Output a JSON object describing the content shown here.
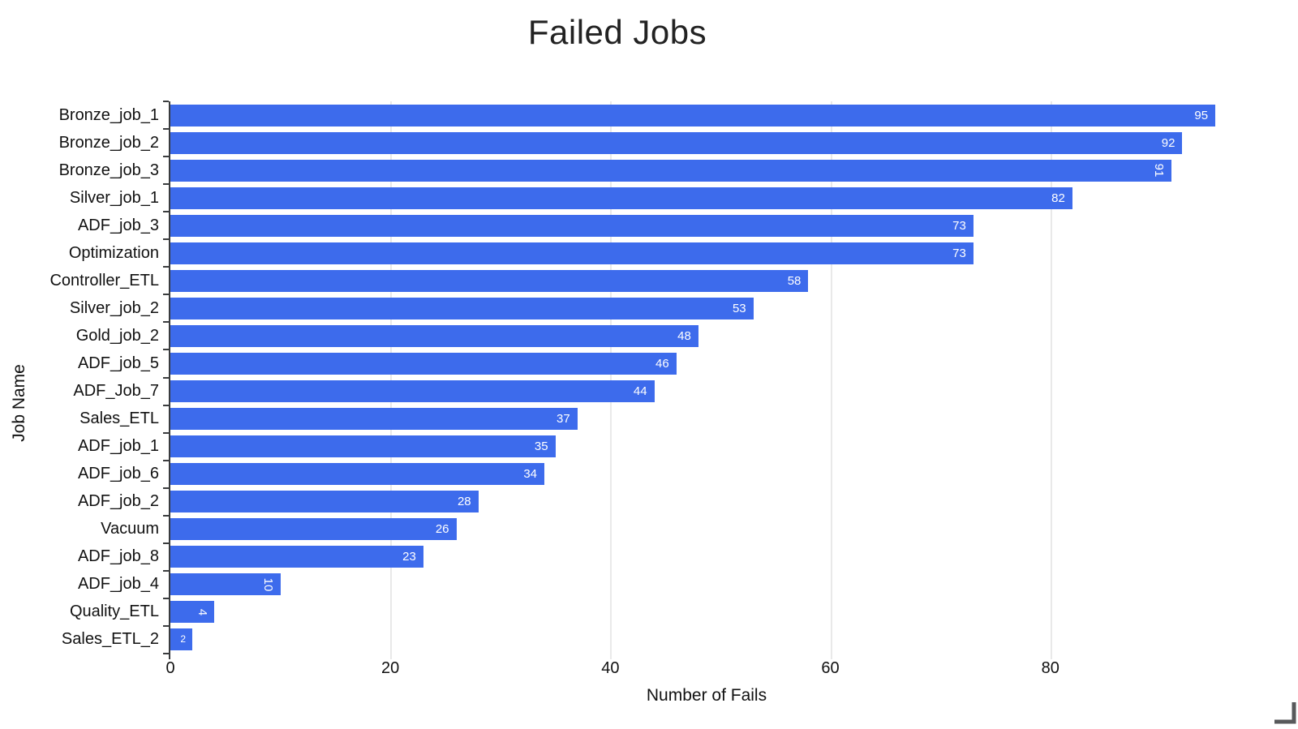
{
  "chart_data": {
    "type": "bar",
    "orientation": "horizontal",
    "title": "Failed Jobs",
    "xlabel": "Number of Fails",
    "ylabel": "Job Name",
    "xlim": [
      0,
      97.5
    ],
    "xticks": [
      0,
      20,
      40,
      60,
      80
    ],
    "grid": true,
    "legend": "none",
    "bar_color": "#3d6bec",
    "gridline_color": "#e9e9e9",
    "axis_line_color": "#3a3c3e",
    "value_label_color": "#ffffff",
    "bars": [
      {
        "name": "Bronze_job_1",
        "value": 95
      },
      {
        "name": "Bronze_job_2",
        "value": 92
      },
      {
        "name": "Bronze_job_3",
        "value": 91,
        "rotated": true
      },
      {
        "name": "Silver_job_1",
        "value": 82
      },
      {
        "name": "ADF_job_3",
        "value": 73
      },
      {
        "name": "Optimization",
        "value": 73
      },
      {
        "name": "Controller_ETL",
        "value": 58
      },
      {
        "name": "Silver_job_2",
        "value": 53
      },
      {
        "name": "Gold_job_2",
        "value": 48
      },
      {
        "name": "ADF_job_5",
        "value": 46
      },
      {
        "name": "ADF_Job_7",
        "value": 44
      },
      {
        "name": "Sales_ETL",
        "value": 37
      },
      {
        "name": "ADF_job_1",
        "value": 35
      },
      {
        "name": "ADF_job_6",
        "value": 34
      },
      {
        "name": "ADF_job_2",
        "value": 28
      },
      {
        "name": "Vacuum",
        "value": 26
      },
      {
        "name": "ADF_job_8",
        "value": 23
      },
      {
        "name": "ADF_job_4",
        "value": 10,
        "rotated": true
      },
      {
        "name": "Quality_ETL",
        "value": 4,
        "rotated": true
      },
      {
        "name": "Sales_ETL_2",
        "value": 2,
        "small": true
      }
    ]
  },
  "ui": {
    "resize_handle_color": "#58595b"
  }
}
